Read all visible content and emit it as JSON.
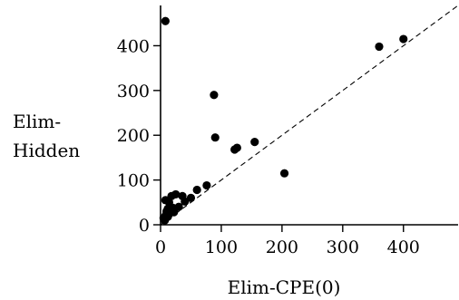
{
  "chart_data": {
    "type": "scatter",
    "title": "",
    "xlabel": "Elim-CPE(0)",
    "ylabel_lines": [
      "Elim-",
      "Hidden"
    ],
    "xlim": [
      0,
      490
    ],
    "ylim": [
      0,
      490
    ],
    "xticks": [
      0,
      100,
      200,
      300,
      400
    ],
    "yticks": [
      0,
      100,
      200,
      300,
      400
    ],
    "grid": false,
    "reference_line": {
      "type": "y=x",
      "style": "dashed"
    },
    "points": [
      {
        "x": 8,
        "y": 455
      },
      {
        "x": 360,
        "y": 398
      },
      {
        "x": 400,
        "y": 415
      },
      {
        "x": 88,
        "y": 290
      },
      {
        "x": 90,
        "y": 195
      },
      {
        "x": 122,
        "y": 168
      },
      {
        "x": 126,
        "y": 172
      },
      {
        "x": 155,
        "y": 185
      },
      {
        "x": 204,
        "y": 115
      },
      {
        "x": 76,
        "y": 88
      },
      {
        "x": 60,
        "y": 78
      },
      {
        "x": 50,
        "y": 60
      },
      {
        "x": 40,
        "y": 52
      },
      {
        "x": 36,
        "y": 64
      },
      {
        "x": 25,
        "y": 68
      },
      {
        "x": 18,
        "y": 64
      },
      {
        "x": 8,
        "y": 55
      },
      {
        "x": 14,
        "y": 50
      },
      {
        "x": 30,
        "y": 40
      },
      {
        "x": 20,
        "y": 38
      },
      {
        "x": 12,
        "y": 36
      },
      {
        "x": 10,
        "y": 30
      },
      {
        "x": 15,
        "y": 26
      },
      {
        "x": 8,
        "y": 20
      },
      {
        "x": 5,
        "y": 15
      },
      {
        "x": 7,
        "y": 10
      },
      {
        "x": 12,
        "y": 18
      },
      {
        "x": 22,
        "y": 28
      },
      {
        "x": 18,
        "y": 32
      },
      {
        "x": 10,
        "y": 25
      }
    ]
  }
}
